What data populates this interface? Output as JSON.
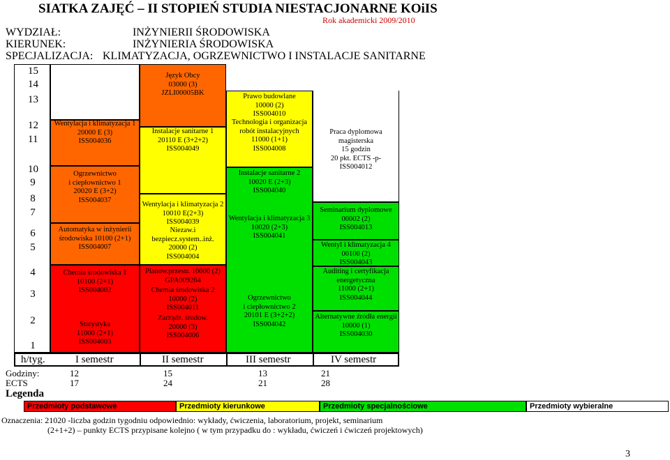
{
  "title": "SIATKA ZAJĘĆ – II STOPIEŃ STUDIA NIESTACJONARNE KOiIS",
  "academic_year": "Rok akademicki 2009/2010",
  "header": [
    {
      "label": "WYDZIAŁ:",
      "value": "INŻYNIERII ŚRODOWISKA"
    },
    {
      "label": "KIERUNEK:",
      "value": "INŻYNIERIA ŚRODOWISKA"
    },
    {
      "label": "SPECJALIZACJA:",
      "value": "KLIMATYZACJA, OGRZEWNICTWO I INSTALACJE SANITARNE"
    }
  ],
  "hours_axis": [
    "15",
    "14",
    "13",
    "12",
    "11",
    "10",
    "9",
    "8",
    "7",
    "6",
    "5",
    "4",
    "3",
    "2",
    "1"
  ],
  "colors": {
    "basic": "#ff0000",
    "major": "#ffff00",
    "specialization": "#00e000",
    "elective": "#ffffff",
    "orange": "#ff6600"
  },
  "semesters": {
    "row_label": "h/tyg.",
    "labels": [
      "I semestr",
      "II semestr",
      "III semestr",
      "IV semestr"
    ]
  },
  "col1": [
    {
      "lines": [
        "Wentylacja i klimatyzacja 1",
        "20000 E (3)",
        "ISS004036"
      ]
    },
    {
      "lines": [
        "Ogrzewnictwo",
        "i ciepłownictwo 1",
        "20020 E (3+2)",
        "ISS004037"
      ]
    },
    {
      "lines": [
        "Automatyka w inżynierii",
        "środowiska 10100 (2+1)",
        "ISS004007"
      ]
    },
    {
      "lines": [
        "Chemia środowiska 1",
        "10100 (2+1)",
        "ISS004002"
      ]
    },
    {
      "lines": [
        "Statystyka",
        "11000 (2+1)",
        "ISS004003"
      ]
    }
  ],
  "col2": [
    {
      "lines": [
        "Język Obcy",
        "03000 (3)",
        "JZLI00005BK"
      ]
    },
    {
      "lines": [
        "Instalacje sanitarne 1",
        "20110 E (3+2+2)",
        "ISS004049"
      ]
    },
    {
      "lines": [
        "Wentylacja i klimatyzacja 2",
        "10010 E(2+3)",
        "ISS004039"
      ]
    },
    {
      "lines": [
        "Niezaw.i",
        "bezpiecz.system..inż.",
        "20000 (2)",
        "ISS004004"
      ]
    },
    {
      "lines": [
        "Planow.przestr. 10000 (2)",
        "GPA009264"
      ]
    },
    {
      "lines": [
        "Chemia środowiska 2",
        "10000 (2)",
        "ISS004011"
      ]
    },
    {
      "lines": [
        "Zarządz. środow.",
        "20000 (3)",
        "ISS004006"
      ]
    }
  ],
  "col3": [
    {
      "lines": [
        "Prawo budowlane",
        "10000 (2)",
        "ISS004010"
      ]
    },
    {
      "lines": [
        "Technologia i organizacja",
        "robót instalacyjnych",
        "11000 (1+1)",
        "ISS004008"
      ]
    },
    {
      "lines": [
        "Instalacje sanitarne 2",
        "10020 E (2+3)",
        "ISS004040"
      ]
    },
    {
      "lines": [
        "Wentylacja i klimatyzacja 3",
        "10020 (2+3)",
        "ISS004041"
      ]
    },
    {
      "lines": [
        "Ogrzewnictwo",
        "i ciepłownictwo 2",
        "20101 E (3+2+2)",
        "ISS004042"
      ]
    }
  ],
  "col4": [
    {
      "lines": [
        "Praca dyplomowa",
        "magisterska",
        "15 godzin",
        "20 pkt. ECTS -p-",
        "ISS004012"
      ]
    },
    {
      "lines": [
        "Seminarium dyplomowe",
        "00002 (2)",
        "ISS004013"
      ]
    },
    {
      "lines": [
        "Wentyl i klimatyzacja 4",
        "00100 (2)",
        "ISS004043"
      ]
    },
    {
      "lines": [
        "Auditing i certyfikacja",
        "energetyczna",
        "11000 (2+1)",
        "ISS004044"
      ]
    },
    {
      "lines": [
        "Alternatywne źródła energii",
        "10000 (1)",
        "ISS004030"
      ]
    }
  ],
  "stats": [
    {
      "label": "Godziny:",
      "values": [
        "12",
        "15",
        "13",
        "21"
      ]
    },
    {
      "label": "ECTS",
      "values": [
        "17",
        "24",
        "21",
        "28"
      ]
    }
  ],
  "legend": {
    "title": "Legenda",
    "items": [
      "Przedmioty podstawowe",
      "Przedmioty kierunkowe",
      "Przedmioty specjalnościowe",
      "Przedmioty wybieralne"
    ]
  },
  "notes": [
    "Oznaczenia: 21020 -liczba godzin tygodniu odpowiednio: wykłady, ćwiczenia, laboratorium, projekt, seminarium",
    "(2+1+2) – punkty ECTS przypisane kolejno ( w tym przypadku do : wykładu, ćwiczeń i ćwiczeń projektowych)"
  ],
  "page_number": "3"
}
